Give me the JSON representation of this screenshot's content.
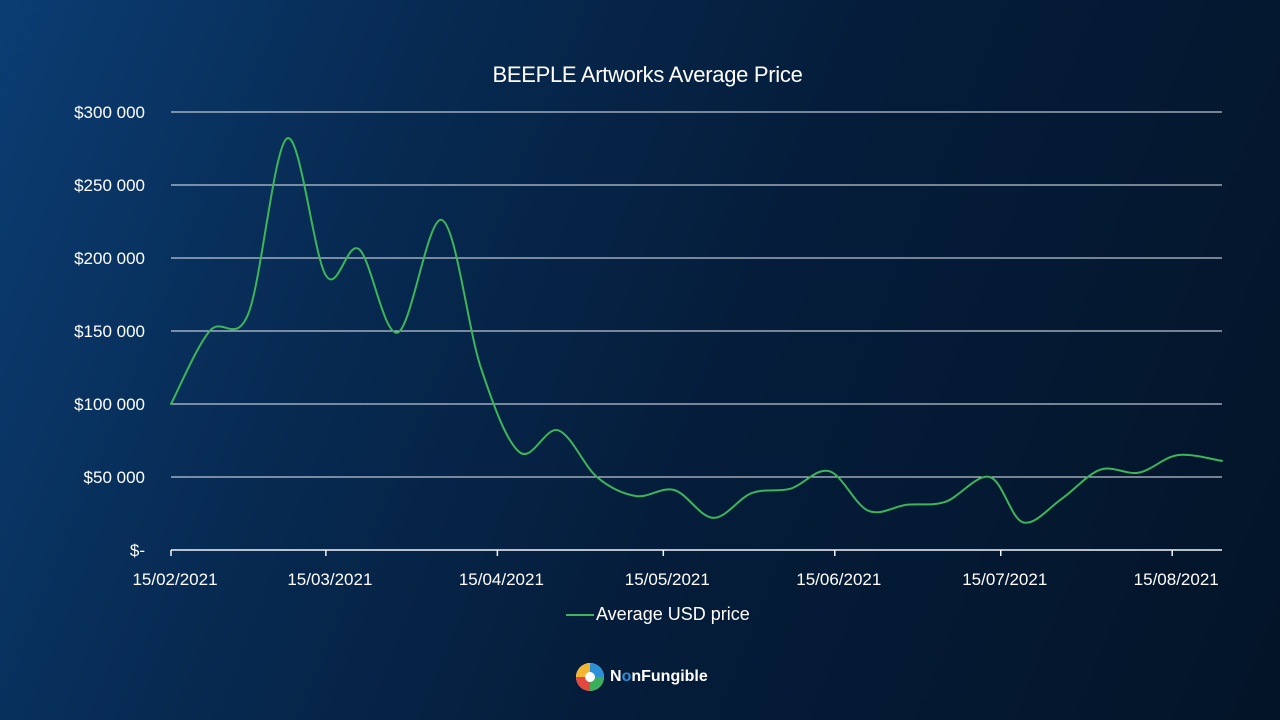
{
  "chart_data": {
    "type": "line",
    "title": "BEEPLE Artworks Average Price",
    "xlabel": "",
    "ylabel": "",
    "ylim": [
      0,
      300000
    ],
    "y_ticks": [
      0,
      50000,
      100000,
      150000,
      200000,
      250000,
      300000
    ],
    "y_tick_labels": [
      "$-",
      "$50 000",
      "$100 000",
      "$150 000",
      "$200 000",
      "$250 000",
      "$300 000"
    ],
    "x_range": [
      "2021-02-15",
      "2021-08-24"
    ],
    "x_ticks": [
      "2021-02-15",
      "2021-03-15",
      "2021-04-15",
      "2021-05-15",
      "2021-06-15",
      "2021-07-15",
      "2021-08-15"
    ],
    "x_tick_labels": [
      "15/02/2021",
      "15/03/2021",
      "15/04/2021",
      "15/05/2021",
      "15/06/2021",
      "15/07/2021",
      "15/08/2021"
    ],
    "grid": "horizontal",
    "legend_position": "bottom",
    "series": [
      {
        "name": "Average USD price",
        "color": "#3db558",
        "points": [
          [
            "2021-02-15",
            100000
          ],
          [
            "2021-02-22",
            150000
          ],
          [
            "2021-03-01",
            162000
          ],
          [
            "2021-03-08",
            282000
          ],
          [
            "2021-03-15",
            188000
          ],
          [
            "2021-03-21",
            206000
          ],
          [
            "2021-03-28",
            149000
          ],
          [
            "2021-04-05",
            226000
          ],
          [
            "2021-04-12",
            125000
          ],
          [
            "2021-04-19",
            67000
          ],
          [
            "2021-04-26",
            82000
          ],
          [
            "2021-05-03",
            50000
          ],
          [
            "2021-05-10",
            37000
          ],
          [
            "2021-05-17",
            41000
          ],
          [
            "2021-05-24",
            22000
          ],
          [
            "2021-05-31",
            39000
          ],
          [
            "2021-06-07",
            42000
          ],
          [
            "2021-06-14",
            54000
          ],
          [
            "2021-06-21",
            27000
          ],
          [
            "2021-06-28",
            31000
          ],
          [
            "2021-07-05",
            33000
          ],
          [
            "2021-07-13",
            50000
          ],
          [
            "2021-07-19",
            19000
          ],
          [
            "2021-07-26",
            35000
          ],
          [
            "2021-08-02",
            55000
          ],
          [
            "2021-08-09",
            53000
          ],
          [
            "2021-08-16",
            65000
          ],
          [
            "2021-08-24",
            61000
          ]
        ]
      }
    ]
  },
  "legend": {
    "label": "Average USD price"
  },
  "brand": {
    "prefix": "N",
    "accent": "o",
    "suffix": "nFungible",
    "logo_icon": "nonfungible-logo-icon"
  }
}
